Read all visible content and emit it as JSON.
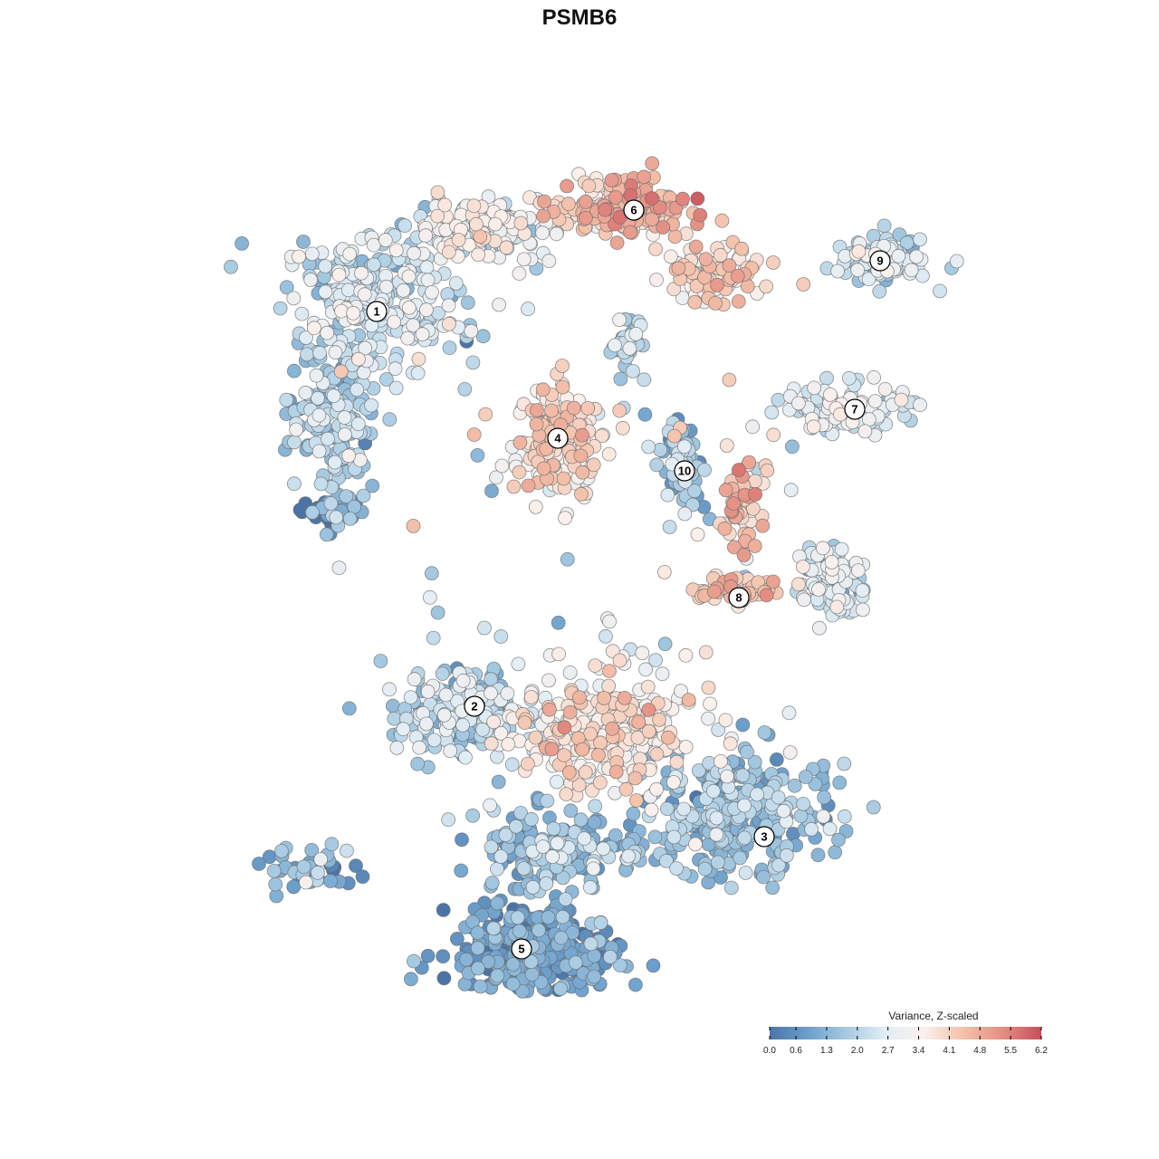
{
  "chart_data": {
    "type": "scatter",
    "title": "PSMB6",
    "xlabel": "",
    "ylabel": "",
    "grid": false,
    "legend": {
      "title": "Variance, Z-scaled",
      "placement": "bottom-right",
      "ticks": [
        "0.0",
        "0.6",
        "1.3",
        "2.0",
        "2.7",
        "3.4",
        "4.1",
        "4.8",
        "5.5",
        "6.2"
      ],
      "range": [
        0,
        6.2
      ],
      "colors": [
        "#4a74a8",
        "#6da0cc",
        "#a7cbe2",
        "#e3eef5",
        "#fbf0eb",
        "#f3c0a9",
        "#e48e83",
        "#c84f5b"
      ]
    },
    "clusters": [
      {
        "label": "1",
        "x": -5.6,
        "y": 7.4,
        "mean_value": 2.3
      },
      {
        "label": "2",
        "x": -2.9,
        "y": -3.5,
        "mean_value": 2.2
      },
      {
        "label": "3",
        "x": 5.1,
        "y": -7.1,
        "mean_value": 1.4
      },
      {
        "label": "4",
        "x": -0.6,
        "y": 3.9,
        "mean_value": 3.8
      },
      {
        "label": "5",
        "x": -1.6,
        "y": -10.2,
        "mean_value": 0.9
      },
      {
        "label": "6",
        "x": 1.5,
        "y": 10.2,
        "mean_value": 4.3
      },
      {
        "label": "7",
        "x": 7.6,
        "y": 4.7,
        "mean_value": 2.5
      },
      {
        "label": "8",
        "x": 4.4,
        "y": -0.5,
        "mean_value": 4.1
      },
      {
        "label": "9",
        "x": 8.3,
        "y": 8.8,
        "mean_value": 2.3
      },
      {
        "label": "10",
        "x": 2.9,
        "y": 3.0,
        "mean_value": 1.8
      }
    ],
    "xlim": [
      -12,
      12
    ],
    "ylim": [
      -15,
      17
    ]
  }
}
